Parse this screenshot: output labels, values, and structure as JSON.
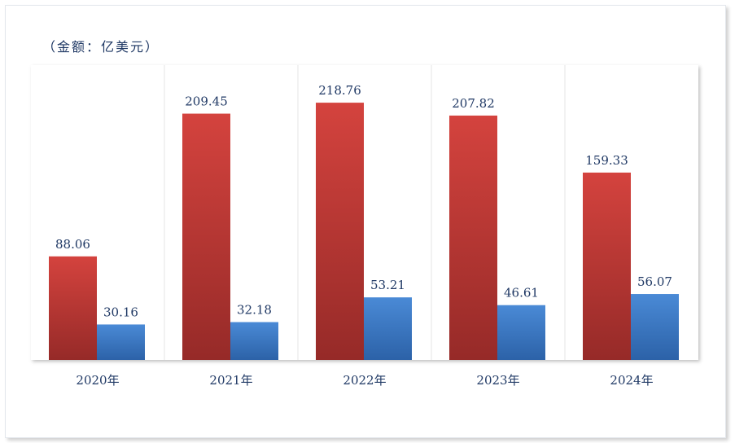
{
  "chart_data": {
    "type": "bar",
    "unit_label": "（金额：亿美元）",
    "categories": [
      "2020年",
      "2021年",
      "2022年",
      "2023年",
      "2024年"
    ],
    "series": [
      {
        "values": [
          88.06,
          209.45,
          218.76,
          207.82,
          159.33
        ],
        "color": "#c23a37"
      },
      {
        "values": [
          30.16,
          32.18,
          53.21,
          46.61,
          56.07
        ],
        "color": "#3a78c4"
      }
    ],
    "ylim": [
      0,
      240
    ],
    "grid": false,
    "legend": "none"
  }
}
